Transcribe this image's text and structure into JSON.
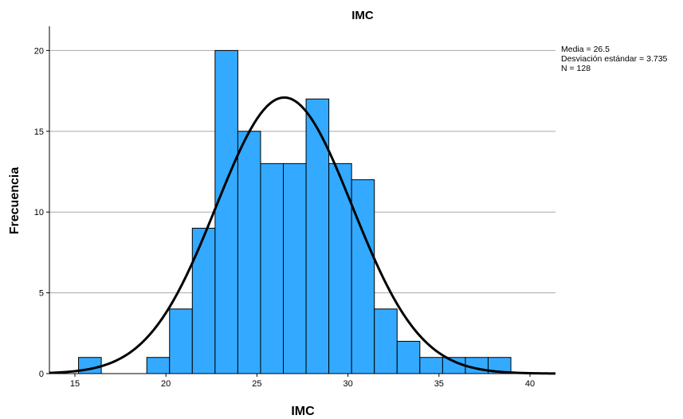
{
  "chart_data": {
    "type": "histogram",
    "title": "IMC",
    "xlabel": "IMC",
    "ylabel": "Frecuencia",
    "xlim": [
      13.6,
      41.4
    ],
    "ylim": [
      0,
      21.5
    ],
    "x_ticks": [
      15,
      20,
      25,
      30,
      35,
      40
    ],
    "y_ticks": [
      0,
      5,
      10,
      15,
      20
    ],
    "grid": true,
    "bar_color": "#33aaff",
    "bin_start": 15.2,
    "bin_width": 1.25,
    "bins": [
      {
        "x0": 15.2,
        "x1": 16.45,
        "count": 1
      },
      {
        "x0": 16.45,
        "x1": 17.7,
        "count": 0
      },
      {
        "x0": 17.7,
        "x1": 18.95,
        "count": 0
      },
      {
        "x0": 18.95,
        "x1": 20.2,
        "count": 1
      },
      {
        "x0": 20.2,
        "x1": 21.45,
        "count": 4
      },
      {
        "x0": 21.45,
        "x1": 22.7,
        "count": 9
      },
      {
        "x0": 22.7,
        "x1": 23.95,
        "count": 20
      },
      {
        "x0": 23.95,
        "x1": 25.2,
        "count": 15
      },
      {
        "x0": 25.2,
        "x1": 26.45,
        "count": 13
      },
      {
        "x0": 26.45,
        "x1": 27.7,
        "count": 13
      },
      {
        "x0": 27.7,
        "x1": 28.95,
        "count": 17
      },
      {
        "x0": 28.95,
        "x1": 30.2,
        "count": 13
      },
      {
        "x0": 30.2,
        "x1": 31.45,
        "count": 12
      },
      {
        "x0": 31.45,
        "x1": 32.7,
        "count": 4
      },
      {
        "x0": 32.7,
        "x1": 33.95,
        "count": 2
      },
      {
        "x0": 33.95,
        "x1": 35.2,
        "count": 1
      },
      {
        "x0": 35.2,
        "x1": 36.45,
        "count": 1
      },
      {
        "x0": 36.45,
        "x1": 37.7,
        "count": 1
      },
      {
        "x0": 37.7,
        "x1": 38.95,
        "count": 1
      }
    ],
    "normal_curve": {
      "mean": 26.5,
      "sd": 3.735,
      "n": 128
    },
    "stats_box": {
      "media": "Media = 26.5",
      "desviacion": "Desviación estándar = 3.735",
      "n": "N = 128"
    }
  }
}
